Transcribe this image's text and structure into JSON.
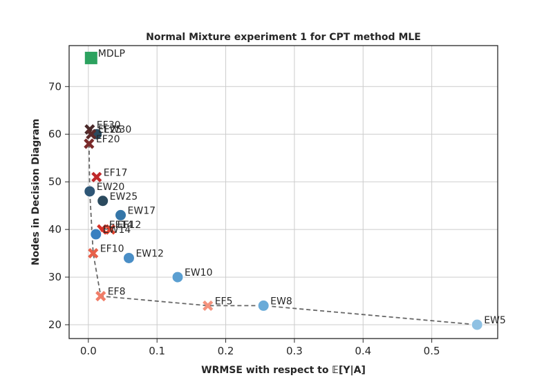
{
  "chart_data": {
    "type": "scatter",
    "title": "Normal Mixture experiment 1 for CPT method MLE",
    "xlabel": "WRMSE with respect to 𝔼[Y|A]",
    "ylabel": "Nodes in Decision Diagram",
    "xlim": [
      -0.028,
      0.596
    ],
    "ylim": [
      17.1,
      78.6
    ],
    "xticks": [
      0.0,
      0.1,
      0.2,
      0.3,
      0.4,
      0.5
    ],
    "xtick_labels": [
      "0.0",
      "0.1",
      "0.2",
      "0.3",
      "0.4",
      "0.5"
    ],
    "yticks": [
      20,
      30,
      40,
      50,
      60,
      70
    ],
    "ytick_labels": [
      "20",
      "30",
      "40",
      "50",
      "60",
      "70"
    ],
    "grid": true,
    "points": [
      {
        "label": "MDLP",
        "x": 0.004,
        "y": 76,
        "marker": "square",
        "color": "#2ca25f"
      },
      {
        "label": "EF30",
        "x": 0.002,
        "y": 61,
        "marker": "x",
        "color": "#4a2a2a"
      },
      {
        "label": "EW30",
        "x": 0.012,
        "y": 60,
        "marker": "circle",
        "color": "#2b4a5e"
      },
      {
        "label": "EF25",
        "x": 0.004,
        "y": 60,
        "marker": "x",
        "color": "#5c2a2a"
      },
      {
        "label": "EF20",
        "x": 0.001,
        "y": 58,
        "marker": "x",
        "color": "#7a2a2a"
      },
      {
        "label": "EF17",
        "x": 0.012,
        "y": 51,
        "marker": "x",
        "color": "#c0282a"
      },
      {
        "label": "EW20",
        "x": 0.002,
        "y": 48,
        "marker": "circle",
        "color": "#2e5676"
      },
      {
        "label": "EW25",
        "x": 0.021,
        "y": 46,
        "marker": "circle",
        "color": "#2b4a5e"
      },
      {
        "label": "EW17",
        "x": 0.047,
        "y": 43,
        "marker": "circle",
        "color": "#3576a8"
      },
      {
        "label": "EF14",
        "x": 0.02,
        "y": 40,
        "marker": "x",
        "color": "#d73027"
      },
      {
        "label": "EF12",
        "x": 0.032,
        "y": 40,
        "marker": "x",
        "color": "#e0442f"
      },
      {
        "label": "EW14",
        "x": 0.011,
        "y": 39,
        "marker": "circle",
        "color": "#3a80c0"
      },
      {
        "label": "EF10",
        "x": 0.007,
        "y": 35,
        "marker": "x",
        "color": "#e8604a"
      },
      {
        "label": "EW12",
        "x": 0.059,
        "y": 34,
        "marker": "circle",
        "color": "#4a8ec6"
      },
      {
        "label": "EW10",
        "x": 0.13,
        "y": 30,
        "marker": "circle",
        "color": "#5b9fd1"
      },
      {
        "label": "EF8",
        "x": 0.018,
        "y": 26,
        "marker": "x",
        "color": "#f07d68"
      },
      {
        "label": "EF5",
        "x": 0.174,
        "y": 24,
        "marker": "x",
        "color": "#f4937e"
      },
      {
        "label": "EW8",
        "x": 0.255,
        "y": 24,
        "marker": "circle",
        "color": "#6aabd8"
      },
      {
        "label": "EW5",
        "x": 0.566,
        "y": 20,
        "marker": "circle",
        "color": "#8fc1e3"
      }
    ],
    "pareto_front": [
      {
        "x": 0.001,
        "y": 58
      },
      {
        "x": 0.002,
        "y": 48
      },
      {
        "x": 0.007,
        "y": 35
      },
      {
        "x": 0.018,
        "y": 26
      },
      {
        "x": 0.174,
        "y": 24
      },
      {
        "x": 0.255,
        "y": 24
      },
      {
        "x": 0.566,
        "y": 20
      }
    ]
  }
}
